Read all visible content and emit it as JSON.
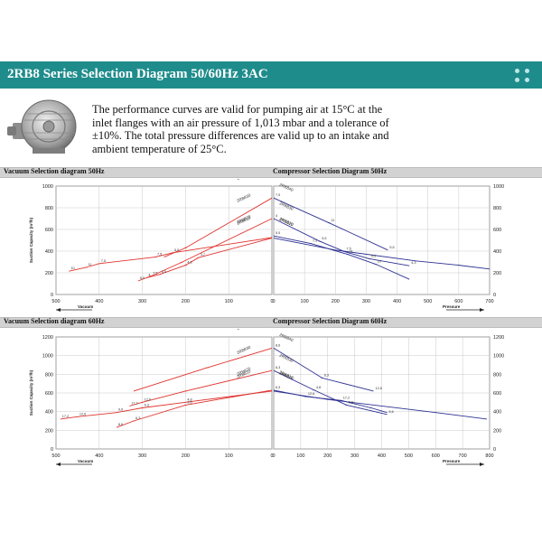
{
  "header": {
    "title": "2RB8 Series Selection Diagram 50/60Hz 3AC",
    "menu_icon": "grid-dots-icon",
    "accent_color": "#1f8c8c"
  },
  "intro_text": "The performance curves are valid for pumping air at 15°C at the inlet flanges with an air pressure of 1,013 mbar and a tolerance of ±10%. The total pressure differences are valid up to an intake and ambient temperature of 25°C.",
  "product_image": "side-channel-blower-icon",
  "colors": {
    "vacuum": "#e0342f",
    "pressure": "#2e3192",
    "grid": "#c9c9c9"
  },
  "sections": [
    {
      "left_title": "Vacuum Selection diagram 50Hz",
      "right_title": "Compressor Selection Diagram 50Hz"
    },
    {
      "left_title": "Vacuum Selection diagram 60Hz",
      "right_title": "Compressor Selection Diagram 60Hz"
    }
  ],
  "chart_data": [
    {
      "type": "line",
      "title": "Vacuum Selection diagram 50Hz",
      "xlabel": "Vacuum",
      "ylabel": "Suction Capacity (m³/h)",
      "x_ticks": [
        "500",
        "400",
        "300",
        "200",
        "100",
        "0"
      ],
      "y_ticks": [
        "0",
        "200",
        "400",
        "600",
        "800",
        "1000"
      ],
      "xlim": [
        500,
        0
      ],
      "ylim": [
        0,
        1000
      ],
      "grid": true,
      "series": [
        {
          "name": "2RB810",
          "points": [
            [
              470,
              215
            ],
            [
              430,
              250
            ],
            [
              400,
              285
            ],
            [
              270,
              345
            ],
            [
              230,
              385
            ],
            [
              0,
              525
            ]
          ]
        },
        {
          "name": "2RB820",
          "points": [
            [
              290,
              155
            ],
            [
              260,
              185
            ],
            [
              200,
              270
            ],
            [
              170,
              340
            ],
            [
              0,
              520
            ]
          ]
        },
        {
          "name": "2RB830",
          "points": [
            [
              310,
              125
            ],
            [
              280,
              170
            ],
            [
              210,
              295
            ],
            [
              0,
              700
            ]
          ]
        },
        {
          "name": "2RB840",
          "points": [
            [
              250,
              345
            ],
            [
              200,
              430
            ],
            [
              0,
              890
            ]
          ]
        }
      ],
      "point_labels": [
        "10",
        "11",
        "7,5",
        "7,5",
        "5,5",
        "5,5",
        "4",
        "5,5",
        "4,3",
        "3,7",
        "4",
        "5,5",
        "7,5"
      ]
    },
    {
      "type": "line",
      "title": "Compressor Selection Diagram 50Hz",
      "xlabel": "Pressure",
      "ylabel": "Suction Capacity (m³/h)",
      "x_ticks": [
        "0",
        "100",
        "200",
        "300",
        "400",
        "500",
        "600",
        "700"
      ],
      "y_ticks": [
        "0",
        "200",
        "400",
        "600",
        "800",
        "1000"
      ],
      "xlim": [
        0,
        700
      ],
      "ylim": [
        0,
        1000
      ],
      "grid": true,
      "series": [
        {
          "name": "2RB840",
          "points": [
            [
              0,
              890
            ],
            [
              180,
              660
            ],
            [
              370,
              410
            ]
          ]
        },
        {
          "name": "2RB830",
          "points": [
            [
              0,
              700
            ],
            [
              150,
              490
            ],
            [
              230,
              395
            ],
            [
              310,
              330
            ],
            [
              440,
              265
            ]
          ]
        },
        {
          "name": "2RB820",
          "points": [
            [
              0,
              540
            ],
            [
              120,
              470
            ],
            [
              240,
              370
            ],
            [
              330,
              280
            ],
            [
              440,
              140
            ]
          ]
        },
        {
          "name": "2RB810",
          "points": [
            [
              0,
              520
            ],
            [
              200,
              410
            ],
            [
              460,
              310
            ],
            [
              600,
              270
            ],
            [
              700,
              235
            ]
          ]
        }
      ],
      "point_labels": [
        "7,5",
        "11",
        "5,5",
        "4",
        "5,5",
        "7,5",
        "5,5",
        "4,3",
        "5,5",
        "7,5",
        "11",
        "10"
      ]
    },
    {
      "type": "line",
      "title": "Vacuum Selection diagram 60Hz",
      "xlabel": "Vacuum",
      "ylabel": "Suction Capacity (m³/h)",
      "x_ticks": [
        "500",
        "400",
        "300",
        "200",
        "100",
        "0"
      ],
      "y_ticks": [
        "0",
        "200",
        "400",
        "600",
        "800",
        "1000",
        "1200"
      ],
      "xlim": [
        500,
        0
      ],
      "ylim": [
        0,
        1200
      ],
      "grid": true,
      "series": [
        {
          "name": "2RB810",
          "points": [
            [
              490,
              320
            ],
            [
              450,
              345
            ],
            [
              360,
              390
            ],
            [
              300,
              440
            ],
            [
              200,
              500
            ],
            [
              0,
              620
            ]
          ]
        },
        {
          "name": "2RB820",
          "points": [
            [
              360,
              230
            ],
            [
              320,
              300
            ],
            [
              200,
              470
            ],
            [
              0,
              630
            ]
          ]
        },
        {
          "name": "2RB830",
          "points": [
            [
              330,
              460
            ],
            [
              300,
              500
            ],
            [
              200,
              620
            ],
            [
              0,
              840
            ]
          ]
        },
        {
          "name": "2RB840",
          "points": [
            [
              320,
              620
            ],
            [
              150,
              870
            ],
            [
              0,
              1080
            ]
          ]
        }
      ],
      "point_labels": [
        "17,2",
        "12,6",
        "9,6",
        "6,3",
        "4,8",
        "8,6",
        "8,6",
        "6,3",
        "9,6",
        "12,6",
        "17,2",
        "12,6"
      ]
    },
    {
      "type": "line",
      "title": "Compressor Selection Diagram 60Hz",
      "xlabel": "Pressure",
      "ylabel": "Suction Capacity (m³/h)",
      "x_ticks": [
        "0",
        "100",
        "200",
        "300",
        "400",
        "500",
        "600",
        "700",
        "800"
      ],
      "y_ticks": [
        "0",
        "200",
        "400",
        "600",
        "800",
        "1000",
        "1200"
      ],
      "xlim": [
        0,
        800
      ],
      "ylim": [
        0,
        1200
      ],
      "grid": true,
      "series": [
        {
          "name": "2RB840",
          "points": [
            [
              0,
              1080
            ],
            [
              180,
              760
            ],
            [
              370,
              620
            ]
          ]
        },
        {
          "name": "2RB830",
          "points": [
            [
              0,
              840
            ],
            [
              150,
              630
            ],
            [
              270,
              470
            ],
            [
              420,
              370
            ]
          ]
        },
        {
          "name": "2RB820",
          "points": [
            [
              0,
              630
            ],
            [
              120,
              560
            ],
            [
              250,
              520
            ],
            [
              360,
              440
            ],
            [
              420,
              390
            ]
          ]
        },
        {
          "name": "2RB810",
          "points": [
            [
              0,
              620
            ],
            [
              200,
              530
            ],
            [
              600,
              390
            ],
            [
              790,
              320
            ]
          ]
        }
      ],
      "point_labels": [
        "8,6",
        "6,3",
        "12,6",
        "6,3",
        "4,8",
        "9,6",
        "8,6",
        "6,3",
        "12,6",
        "17,2"
      ]
    }
  ]
}
